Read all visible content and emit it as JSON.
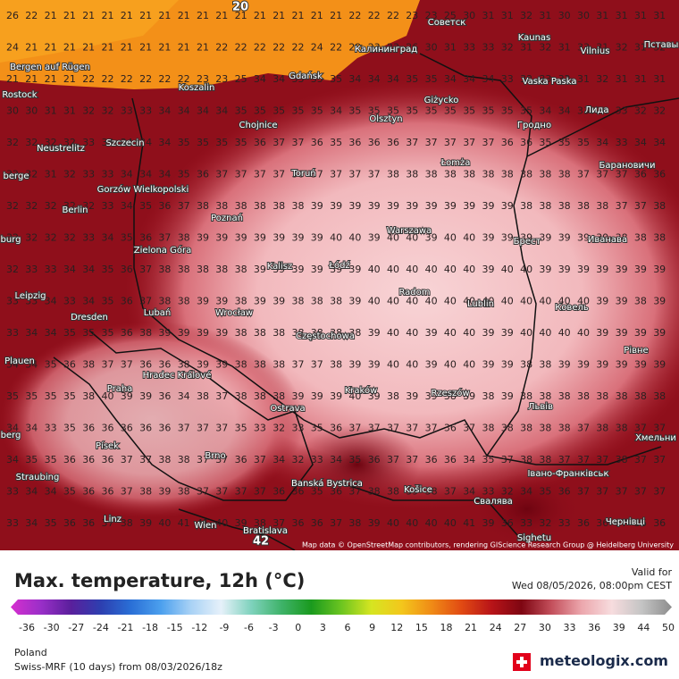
{
  "map": {
    "top_labels": [
      "20",
      "42"
    ],
    "cities": [
      "Советск",
      "Kaunas",
      "Vilnius",
      "Пставы",
      "Bergen auf Rügen",
      "Калининград",
      "Gdańsk",
      "Koszalin",
      "Vaska Paska",
      "Rostock",
      "Giżycko",
      "Лида",
      "Olsztyn",
      "Chojnice",
      "Гродно",
      "Neustrelitz",
      "Szczecin",
      "Łomża",
      "Барановичи",
      "Toruń",
      "Gorzów Wielkopolski",
      "Berlin",
      "Poznań",
      "Warszawa",
      "Брест",
      "Иванава",
      "Zielona Góra",
      "Kalisz",
      "Łódź",
      "Leipzig",
      "Radom",
      "Lublin",
      "Ковель",
      "Dresden",
      "Lubań",
      "Wrocław",
      "Częstochowa",
      "Plauen",
      "Рівне",
      "Hradec Králové",
      "Kraków",
      "Rzeszów",
      "Praha",
      "Ostrava",
      "Львів",
      "Хмельни",
      "Písek",
      "Brno",
      "Banská Bystrica",
      "Košice",
      "Івано-Франківськ",
      "Straubing",
      "Свалява",
      "Linz",
      "Wien",
      "Bratislava",
      "Чернівці",
      "Sighetu",
      "berge",
      "burg",
      "berg"
    ],
    "grid": [
      [
        26,
        22,
        21,
        21,
        21,
        21,
        21,
        21,
        21,
        21,
        21,
        21,
        21,
        21,
        21,
        21,
        21,
        21,
        22,
        22,
        22,
        23,
        23,
        25,
        30,
        31,
        31,
        32,
        31,
        30,
        30,
        31,
        31,
        31,
        31
      ],
      [
        24,
        21,
        21,
        21,
        21,
        21,
        21,
        21,
        21,
        21,
        21,
        22,
        22,
        22,
        22,
        22,
        24,
        22,
        22,
        23,
        23,
        26,
        30,
        31,
        33,
        33,
        32,
        31,
        32,
        31,
        33,
        31,
        32,
        31,
        32
      ],
      [
        21,
        21,
        21,
        21,
        22,
        22,
        22,
        22,
        22,
        22,
        23,
        23,
        25,
        34,
        34,
        33,
        35,
        35,
        34,
        34,
        34,
        35,
        35,
        34,
        34,
        34,
        33,
        32,
        33,
        32,
        31,
        32,
        31,
        31,
        31
      ],
      [
        30,
        30,
        31,
        31,
        32,
        32,
        33,
        33,
        34,
        34,
        34,
        34,
        35,
        35,
        35,
        35,
        35,
        34,
        35,
        35,
        35,
        35,
        35,
        35,
        35,
        35,
        35,
        35,
        34,
        34,
        33,
        34,
        33,
        32,
        32
      ],
      [
        32,
        32,
        32,
        32,
        33,
        33,
        34,
        34,
        34,
        35,
        35,
        35,
        35,
        36,
        37,
        37,
        36,
        35,
        36,
        36,
        36,
        37,
        37,
        37,
        37,
        37,
        36,
        36,
        35,
        35,
        35,
        34,
        33,
        34,
        34
      ],
      [
        32,
        32,
        31,
        32,
        33,
        33,
        34,
        34,
        34,
        35,
        36,
        37,
        37,
        37,
        37,
        38,
        37,
        37,
        37,
        37,
        38,
        38,
        38,
        38,
        38,
        38,
        38,
        38,
        38,
        38,
        37,
        37,
        37,
        36,
        36
      ],
      [
        32,
        32,
        32,
        32,
        32,
        33,
        34,
        35,
        36,
        37,
        38,
        38,
        38,
        38,
        38,
        38,
        39,
        39,
        39,
        39,
        39,
        39,
        39,
        39,
        39,
        39,
        39,
        38,
        38,
        38,
        38,
        38,
        37,
        37,
        38
      ],
      [
        32,
        32,
        32,
        32,
        33,
        34,
        35,
        36,
        37,
        38,
        39,
        39,
        39,
        39,
        39,
        39,
        39,
        40,
        40,
        39,
        40,
        40,
        39,
        40,
        40,
        39,
        39,
        39,
        39,
        39,
        39,
        39,
        38,
        38,
        38
      ],
      [
        32,
        33,
        33,
        34,
        34,
        35,
        36,
        37,
        38,
        38,
        38,
        38,
        38,
        39,
        39,
        39,
        39,
        39,
        39,
        40,
        40,
        40,
        40,
        40,
        40,
        39,
        40,
        40,
        39,
        39,
        39,
        39,
        39,
        39,
        39
      ],
      [
        33,
        33,
        34,
        33,
        34,
        35,
        36,
        37,
        38,
        38,
        39,
        39,
        38,
        39,
        39,
        38,
        38,
        38,
        39,
        40,
        40,
        40,
        40,
        40,
        40,
        40,
        40,
        40,
        40,
        40,
        40,
        39,
        39,
        38,
        39
      ],
      [
        33,
        34,
        34,
        35,
        35,
        35,
        36,
        38,
        39,
        39,
        39,
        39,
        38,
        38,
        38,
        38,
        38,
        38,
        38,
        39,
        40,
        40,
        39,
        40,
        40,
        39,
        39,
        40,
        40,
        40,
        40,
        39,
        39,
        39,
        39
      ],
      [
        34,
        34,
        35,
        36,
        38,
        37,
        37,
        36,
        36,
        38,
        39,
        39,
        38,
        38,
        38,
        37,
        37,
        38,
        39,
        39,
        40,
        40,
        39,
        40,
        40,
        39,
        39,
        38,
        38,
        39,
        39,
        39,
        39,
        39,
        39
      ],
      [
        35,
        35,
        35,
        35,
        38,
        40,
        39,
        39,
        36,
        34,
        38,
        37,
        38,
        38,
        38,
        39,
        39,
        39,
        40,
        39,
        38,
        39,
        39,
        38,
        39,
        38,
        39,
        38,
        38,
        38,
        38,
        38,
        38,
        38,
        38
      ],
      [
        34,
        34,
        33,
        35,
        36,
        36,
        36,
        36,
        36,
        37,
        37,
        37,
        35,
        33,
        32,
        33,
        35,
        36,
        37,
        37,
        37,
        37,
        37,
        36,
        37,
        38,
        38,
        38,
        38,
        38,
        37,
        38,
        38,
        37,
        37
      ],
      [
        34,
        35,
        35,
        36,
        36,
        36,
        37,
        37,
        38,
        38,
        37,
        37,
        36,
        37,
        34,
        32,
        33,
        34,
        35,
        36,
        37,
        37,
        36,
        36,
        34,
        35,
        37,
        38,
        38,
        37,
        37,
        37,
        38,
        37,
        37
      ],
      [
        33,
        34,
        34,
        35,
        36,
        36,
        37,
        38,
        39,
        38,
        37,
        37,
        37,
        37,
        36,
        36,
        35,
        36,
        37,
        38,
        38,
        39,
        38,
        37,
        34,
        33,
        32,
        34,
        35,
        36,
        37,
        37,
        37,
        37,
        37
      ],
      [
        33,
        34,
        35,
        36,
        36,
        37,
        38,
        39,
        40,
        41,
        41,
        40,
        39,
        38,
        37,
        36,
        36,
        37,
        38,
        39,
        40,
        40,
        40,
        40,
        41,
        39,
        36,
        33,
        32,
        33,
        36,
        36,
        37,
        36,
        36
      ]
    ],
    "attribution": "Map data © OpenStreetMap contributors, rendering GIScience Research Group @ Heidelberg University"
  },
  "legend": {
    "title": "Max. temperature, 12h (°C)",
    "valid_label": "Valid for",
    "valid_time": "Wed 08/05/2026, 08:00pm CEST",
    "ticks": [
      -36,
      -30,
      -27,
      -24,
      -21,
      -18,
      -15,
      -12,
      -9,
      -6,
      -3,
      0,
      3,
      6,
      9,
      12,
      15,
      18,
      21,
      24,
      27,
      30,
      33,
      36,
      39,
      44,
      50
    ]
  },
  "footer": {
    "region": "Poland",
    "model": "Swiss-MRF (10 days) from 08/03/2026/18z",
    "brand": "meteologix.com"
  }
}
